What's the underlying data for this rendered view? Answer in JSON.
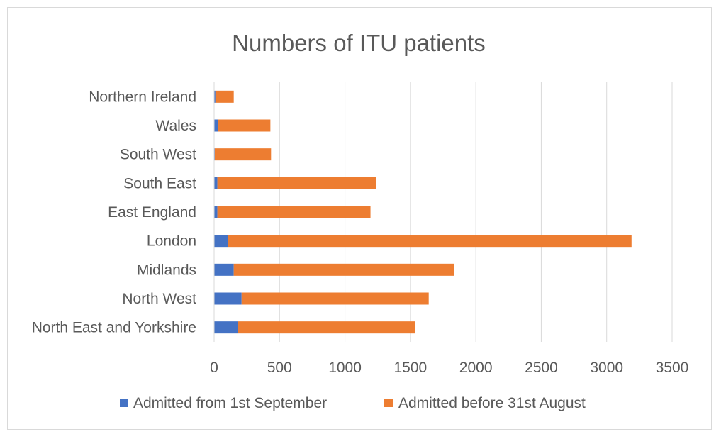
{
  "chart_data": {
    "type": "bar",
    "orientation": "horizontal",
    "stacked": true,
    "title": "Numbers of ITU patients",
    "categories": [
      "North East and Yorkshire",
      "North West",
      "Midlands",
      "London",
      "East England",
      "South East",
      "South West",
      "Wales",
      "Northern Ireland"
    ],
    "series": [
      {
        "name": "Admitted from 1st September",
        "color": "#4472c4",
        "values": [
          180,
          210,
          150,
          105,
          25,
          25,
          5,
          30,
          10
        ]
      },
      {
        "name": "Admitted before 31st August",
        "color": "#ed7d31",
        "values": [
          1355,
          1430,
          1685,
          3085,
          1170,
          1215,
          430,
          400,
          140
        ]
      }
    ],
    "xlim": [
      0,
      3500
    ],
    "xticks": [
      0,
      500,
      1000,
      1500,
      2000,
      2500,
      3000,
      3500
    ],
    "grid": true,
    "legend": "bottom"
  }
}
